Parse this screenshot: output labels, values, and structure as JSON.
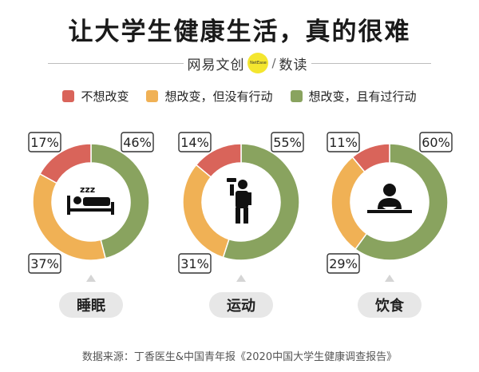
{
  "header": {
    "title": "让大学生健康生活，真的很难"
  },
  "brand": {
    "left": "网易文创",
    "dot": "NetEase",
    "sep": "/",
    "right": "数读"
  },
  "colors": {
    "red": "#d9645a",
    "orange": "#f0b155",
    "green": "#89a35f",
    "pill": "#e7e7e7"
  },
  "chart_data": {
    "type": "pie",
    "series": [
      {
        "name": "不想改变",
        "color": "#d9645a"
      },
      {
        "name": "想改变，但没有行动",
        "color": "#f0b155"
      },
      {
        "name": "想改变，且有过行动",
        "color": "#89a35f"
      }
    ],
    "categories": [
      "睡眠",
      "运动",
      "饮食"
    ],
    "icons": [
      "sleeping-icon",
      "dumbbell-icon",
      "eating-icon"
    ],
    "values": [
      [
        17,
        37,
        46
      ],
      [
        14,
        31,
        55
      ],
      [
        11,
        29,
        60
      ]
    ],
    "labels": [
      [
        "17%",
        "37%",
        "46%"
      ],
      [
        "14%",
        "31%",
        "55%"
      ],
      [
        "11%",
        "29%",
        "60%"
      ]
    ]
  },
  "footer": {
    "source": "数据来源：丁香医生&中国青年报《2020中国大学生健康调查报告》"
  }
}
